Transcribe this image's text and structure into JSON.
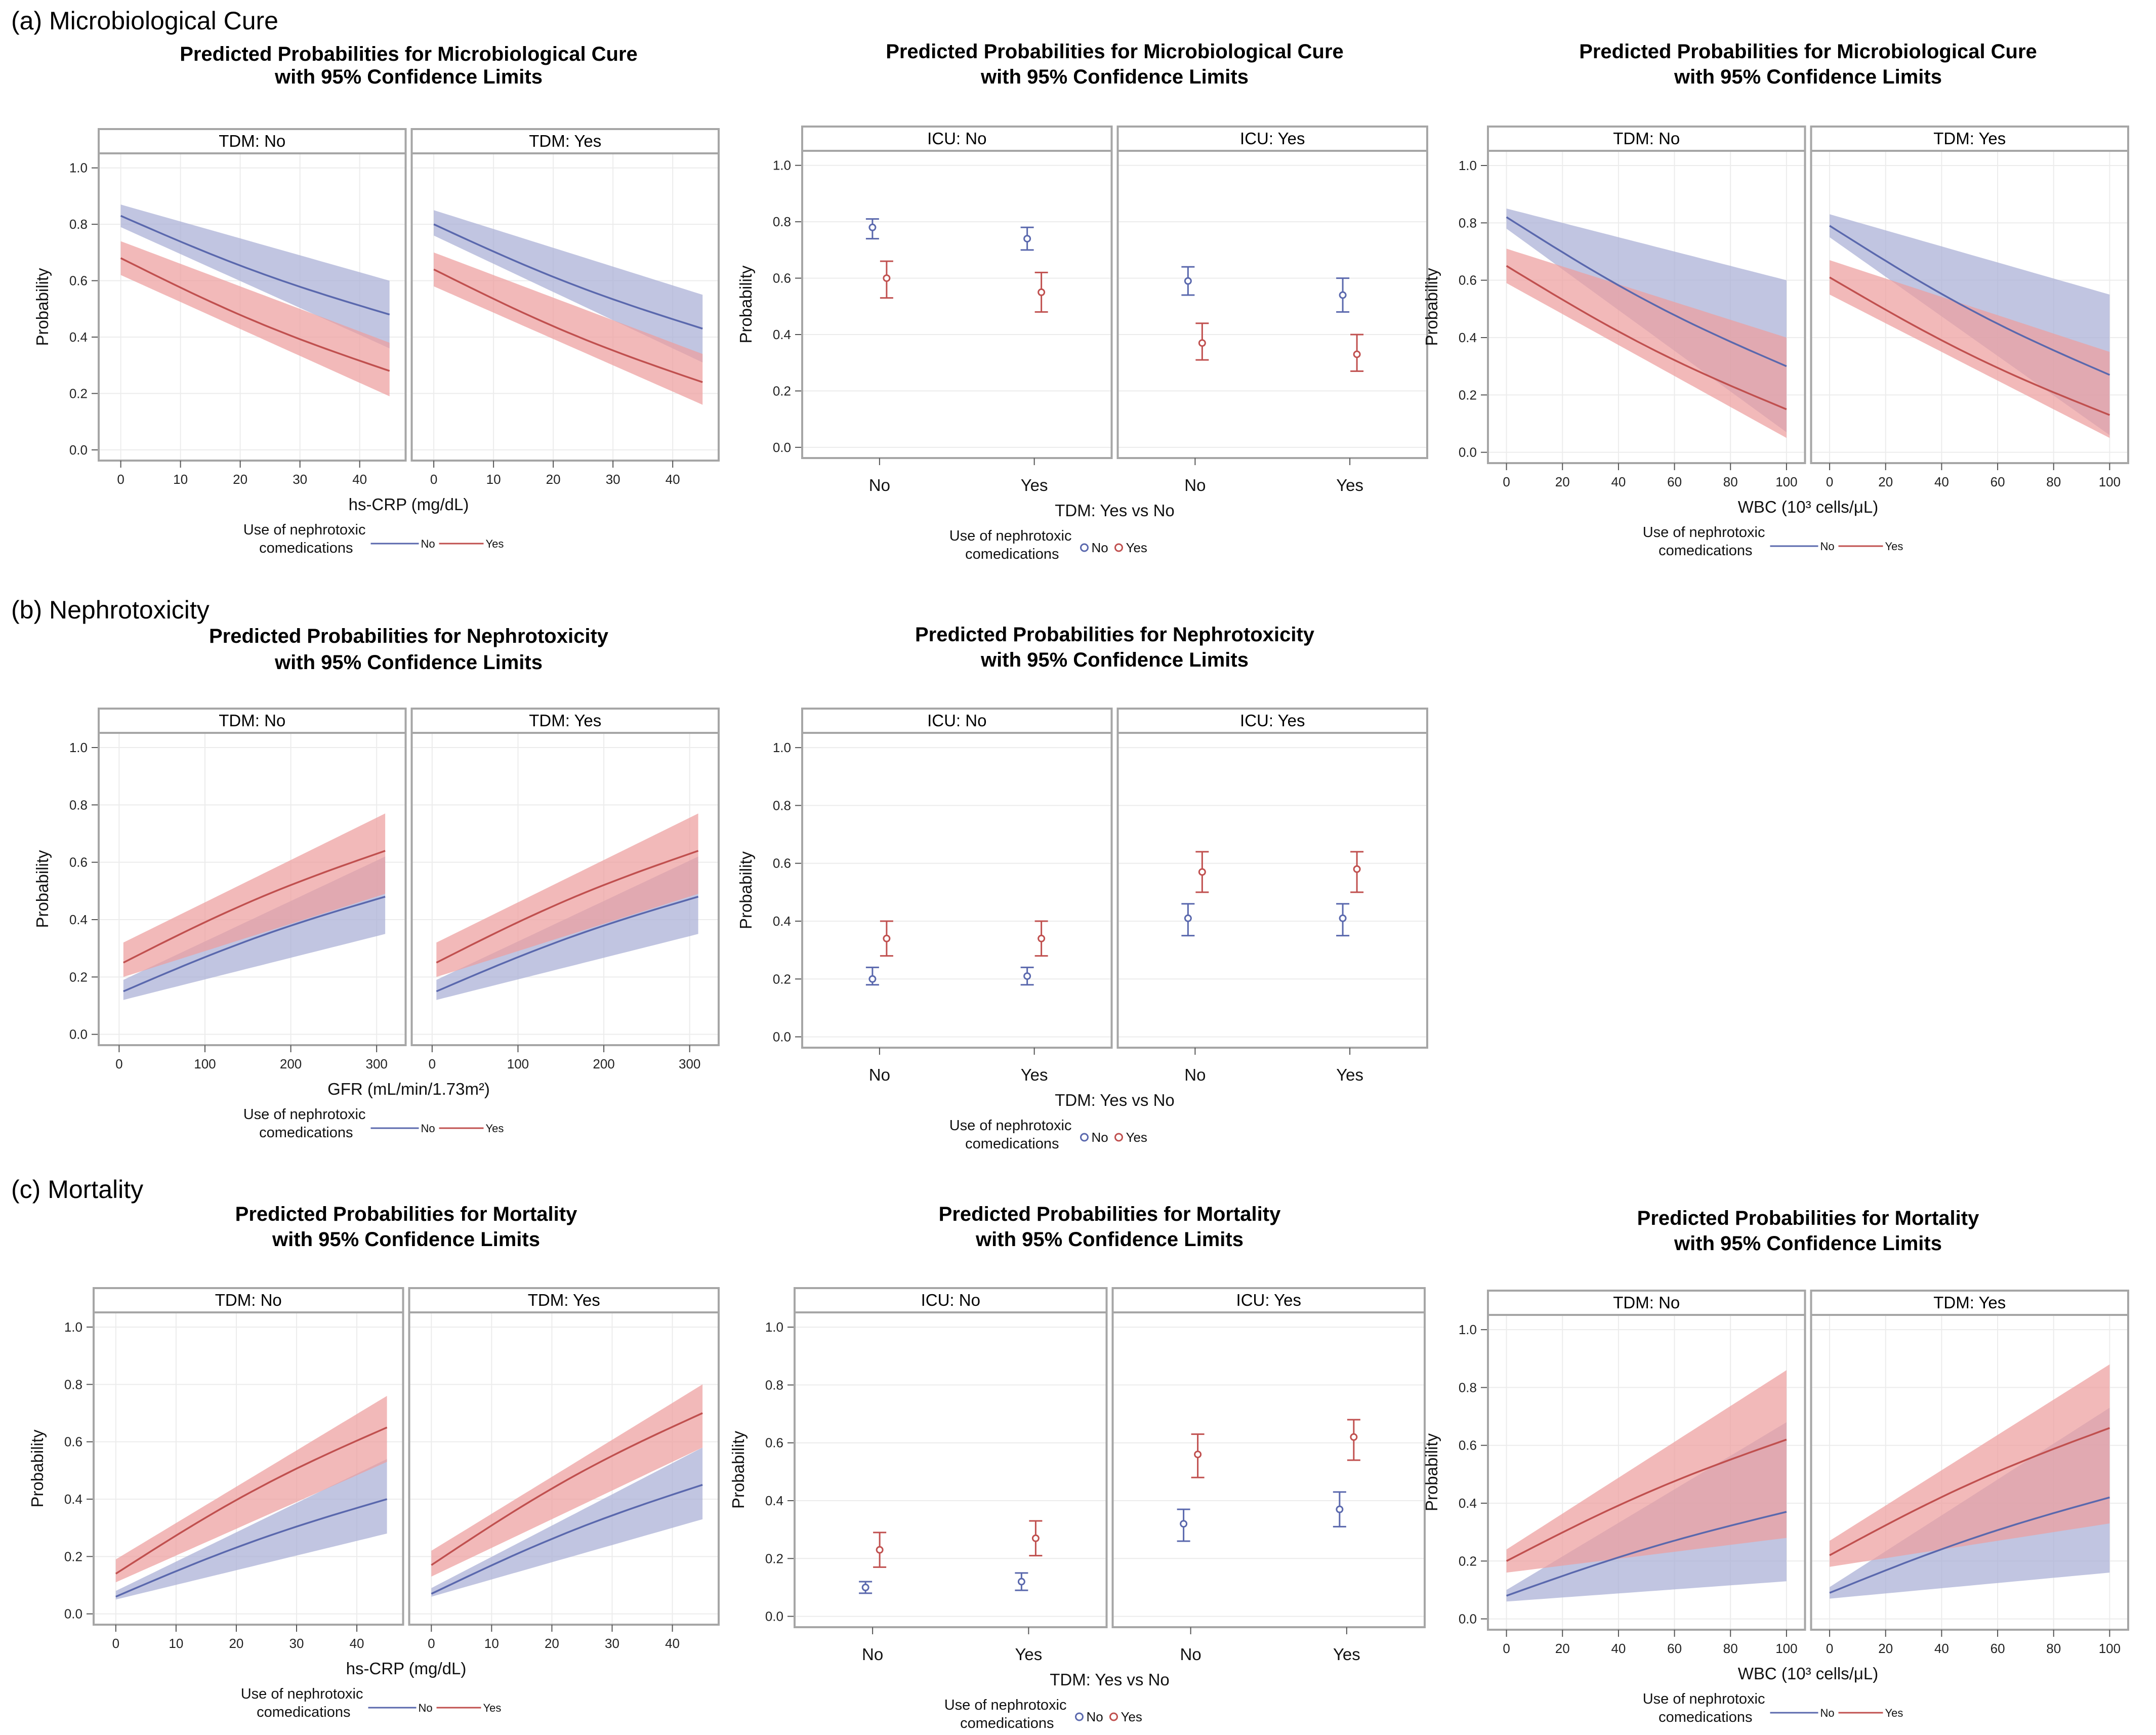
{
  "sections": [
    "(a) Microbiological Cure",
    "(b) Nephrotoxicity",
    "(c) Mortality"
  ],
  "legend": {
    "title_line1": "Use of nephrotoxic",
    "title_line2": "comedications",
    "items": [
      "No",
      "Yes"
    ]
  },
  "colors": {
    "no": "#5a68ad",
    "yes": "#c0504f",
    "no_fill": "#a9afd6",
    "yes_fill": "#ed9e9e",
    "frame": "#a6a6a6",
    "grid": "#ececec"
  },
  "chart_data": [
    {
      "id": "cure-crp",
      "section": 0,
      "type": "line",
      "title_line1": "Predicted Probabilities for Microbiological Cure",
      "title_line2": "with 95% Confidence Limits",
      "panels": [
        "TDM: No",
        "TDM: Yes"
      ],
      "xlabel": "hs-CRP (mg/dL)",
      "ylabel": "Probability",
      "xlim": [
        -2,
        46
      ],
      "ylim": [
        -0.02,
        1.03
      ],
      "xticks": [
        0,
        10,
        20,
        30,
        40
      ],
      "yticks": [
        0.0,
        0.2,
        0.4,
        0.6,
        0.8,
        1.0
      ],
      "series": [
        {
          "name": "No",
          "panels": [
            {
              "x": [
                0,
                45
              ],
              "mid": [
                0.83,
                0.48
              ],
              "lo": [
                0.79,
                0.36
              ],
              "hi": [
                0.87,
                0.6
              ]
            },
            {
              "x": [
                0,
                45
              ],
              "mid": [
                0.8,
                0.43
              ],
              "lo": [
                0.76,
                0.31
              ],
              "hi": [
                0.85,
                0.55
              ]
            }
          ]
        },
        {
          "name": "Yes",
          "panels": [
            {
              "x": [
                0,
                45
              ],
              "mid": [
                0.68,
                0.28
              ],
              "lo": [
                0.62,
                0.19
              ],
              "hi": [
                0.74,
                0.38
              ]
            },
            {
              "x": [
                0,
                45
              ],
              "mid": [
                0.64,
                0.24
              ],
              "lo": [
                0.58,
                0.16
              ],
              "hi": [
                0.7,
                0.34
              ]
            }
          ]
        }
      ]
    },
    {
      "id": "cure-icu",
      "section": 0,
      "type": "scatter",
      "title_line1": "Predicted Probabilities for Microbiological Cure",
      "title_line2": "with 95% Confidence Limits",
      "panels": [
        "ICU: No",
        "ICU: Yes"
      ],
      "categories": [
        "No",
        "Yes"
      ],
      "xlabel": "TDM: Yes vs No",
      "ylabel": "Probability",
      "ylim": [
        -0.02,
        1.03
      ],
      "yticks": [
        0.0,
        0.2,
        0.4,
        0.6,
        0.8,
        1.0
      ],
      "series": [
        {
          "name": "No",
          "panels": [
            {
              "est": [
                0.78,
                0.74
              ],
              "lo": [
                0.74,
                0.7
              ],
              "hi": [
                0.81,
                0.78
              ]
            },
            {
              "est": [
                0.59,
                0.54
              ],
              "lo": [
                0.54,
                0.48
              ],
              "hi": [
                0.64,
                0.6
              ]
            }
          ]
        },
        {
          "name": "Yes",
          "panels": [
            {
              "est": [
                0.6,
                0.55
              ],
              "lo": [
                0.53,
                0.48
              ],
              "hi": [
                0.66,
                0.62
              ]
            },
            {
              "est": [
                0.37,
                0.33
              ],
              "lo": [
                0.31,
                0.27
              ],
              "hi": [
                0.44,
                0.4
              ]
            }
          ]
        }
      ]
    },
    {
      "id": "cure-wbc",
      "section": 0,
      "type": "line",
      "title_line1": "Predicted Probabilities for Microbiological Cure",
      "title_line2": "with 95% Confidence Limits",
      "panels": [
        "TDM: No",
        "TDM: Yes"
      ],
      "xlabel": "WBC (10³ cells/μL)",
      "ylabel": "Probability",
      "xlim": [
        -3,
        103
      ],
      "ylim": [
        -0.02,
        1.03
      ],
      "xticks": [
        0,
        20,
        40,
        60,
        80,
        100
      ],
      "yticks": [
        0.0,
        0.2,
        0.4,
        0.6,
        0.8,
        1.0
      ],
      "series": [
        {
          "name": "No",
          "panels": [
            {
              "x": [
                0,
                100
              ],
              "mid": [
                0.82,
                0.3
              ],
              "lo": [
                0.78,
                0.07
              ],
              "hi": [
                0.85,
                0.6
              ]
            },
            {
              "x": [
                0,
                100
              ],
              "mid": [
                0.79,
                0.27
              ],
              "lo": [
                0.75,
                0.06
              ],
              "hi": [
                0.83,
                0.55
              ]
            }
          ]
        },
        {
          "name": "Yes",
          "panels": [
            {
              "x": [
                0,
                100
              ],
              "mid": [
                0.65,
                0.15
              ],
              "lo": [
                0.59,
                0.05
              ],
              "hi": [
                0.71,
                0.4
              ]
            },
            {
              "x": [
                0,
                100
              ],
              "mid": [
                0.61,
                0.13
              ],
              "lo": [
                0.55,
                0.05
              ],
              "hi": [
                0.67,
                0.35
              ]
            }
          ]
        }
      ]
    },
    {
      "id": "neph-gfr",
      "section": 1,
      "type": "line",
      "title_line1": "Predicted Probabilities for Nephrotoxicity",
      "title_line2": "with 95% Confidence Limits",
      "panels": [
        "TDM: No",
        "TDM: Yes"
      ],
      "xlabel": "GFR (mL/min/1.73m²)",
      "ylabel": "Probability",
      "xlim": [
        -12,
        322
      ],
      "ylim": [
        -0.02,
        1.03
      ],
      "xticks": [
        0,
        100,
        200,
        300
      ],
      "yticks": [
        0.0,
        0.2,
        0.4,
        0.6,
        0.8,
        1.0
      ],
      "series": [
        {
          "name": "No",
          "panels": [
            {
              "x": [
                5,
                310
              ],
              "mid": [
                0.15,
                0.48
              ],
              "lo": [
                0.12,
                0.35
              ],
              "hi": [
                0.19,
                0.62
              ]
            },
            {
              "x": [
                5,
                310
              ],
              "mid": [
                0.15,
                0.48
              ],
              "lo": [
                0.12,
                0.35
              ],
              "hi": [
                0.19,
                0.62
              ]
            }
          ]
        },
        {
          "name": "Yes",
          "panels": [
            {
              "x": [
                5,
                310
              ],
              "mid": [
                0.25,
                0.64
              ],
              "lo": [
                0.2,
                0.49
              ],
              "hi": [
                0.32,
                0.77
              ]
            },
            {
              "x": [
                5,
                310
              ],
              "mid": [
                0.25,
                0.64
              ],
              "lo": [
                0.2,
                0.49
              ],
              "hi": [
                0.32,
                0.77
              ]
            }
          ]
        }
      ]
    },
    {
      "id": "neph-icu",
      "section": 1,
      "type": "scatter",
      "title_line1": "Predicted Probabilities for Nephrotoxicity",
      "title_line2": "with 95% Confidence Limits",
      "panels": [
        "ICU: No",
        "ICU: Yes"
      ],
      "categories": [
        "No",
        "Yes"
      ],
      "xlabel": "TDM: Yes vs No",
      "ylabel": "Probability",
      "ylim": [
        -0.02,
        1.03
      ],
      "yticks": [
        0.0,
        0.2,
        0.4,
        0.6,
        0.8,
        1.0
      ],
      "series": [
        {
          "name": "No",
          "panels": [
            {
              "est": [
                0.2,
                0.21
              ],
              "lo": [
                0.18,
                0.18
              ],
              "hi": [
                0.24,
                0.24
              ]
            },
            {
              "est": [
                0.41,
                0.41
              ],
              "lo": [
                0.35,
                0.35
              ],
              "hi": [
                0.46,
                0.46
              ]
            }
          ]
        },
        {
          "name": "Yes",
          "panels": [
            {
              "est": [
                0.34,
                0.34
              ],
              "lo": [
                0.28,
                0.28
              ],
              "hi": [
                0.4,
                0.4
              ]
            },
            {
              "est": [
                0.57,
                0.58
              ],
              "lo": [
                0.5,
                0.5
              ],
              "hi": [
                0.64,
                0.64
              ]
            }
          ]
        }
      ]
    },
    {
      "id": "mort-crp",
      "section": 2,
      "type": "line",
      "title_line1": "Predicted Probabilities for Mortality",
      "title_line2": "with 95% Confidence Limits",
      "panels": [
        "TDM: No",
        "TDM: Yes"
      ],
      "xlabel": "hs-CRP (mg/dL)",
      "ylabel": "Probability",
      "xlim": [
        -2,
        46
      ],
      "ylim": [
        -0.02,
        1.03
      ],
      "xticks": [
        0,
        10,
        20,
        30,
        40
      ],
      "yticks": [
        0.0,
        0.2,
        0.4,
        0.6,
        0.8,
        1.0
      ],
      "series": [
        {
          "name": "No",
          "panels": [
            {
              "x": [
                0,
                45
              ],
              "mid": [
                0.06,
                0.4
              ],
              "lo": [
                0.05,
                0.28
              ],
              "hi": [
                0.08,
                0.54
              ]
            },
            {
              "x": [
                0,
                45
              ],
              "mid": [
                0.07,
                0.45
              ],
              "lo": [
                0.06,
                0.33
              ],
              "hi": [
                0.09,
                0.58
              ]
            }
          ]
        },
        {
          "name": "Yes",
          "panels": [
            {
              "x": [
                0,
                45
              ],
              "mid": [
                0.14,
                0.65
              ],
              "lo": [
                0.11,
                0.53
              ],
              "hi": [
                0.19,
                0.76
              ]
            },
            {
              "x": [
                0,
                45
              ],
              "mid": [
                0.17,
                0.7
              ],
              "lo": [
                0.13,
                0.58
              ],
              "hi": [
                0.22,
                0.8
              ]
            }
          ]
        }
      ]
    },
    {
      "id": "mort-icu",
      "section": 2,
      "type": "scatter",
      "title_line1": "Predicted Probabilities for Mortality",
      "title_line2": "with 95% Confidence Limits",
      "panels": [
        "ICU: No",
        "ICU: Yes"
      ],
      "categories": [
        "No",
        "Yes"
      ],
      "xlabel": "TDM: Yes vs No",
      "ylabel": "Probability",
      "ylim": [
        -0.02,
        1.03
      ],
      "yticks": [
        0.0,
        0.2,
        0.4,
        0.6,
        0.8,
        1.0
      ],
      "series": [
        {
          "name": "No",
          "panels": [
            {
              "est": [
                0.1,
                0.12
              ],
              "lo": [
                0.08,
                0.09
              ],
              "hi": [
                0.12,
                0.15
              ]
            },
            {
              "est": [
                0.32,
                0.37
              ],
              "lo": [
                0.26,
                0.31
              ],
              "hi": [
                0.37,
                0.43
              ]
            }
          ]
        },
        {
          "name": "Yes",
          "panels": [
            {
              "est": [
                0.23,
                0.27
              ],
              "lo": [
                0.17,
                0.21
              ],
              "hi": [
                0.29,
                0.33
              ]
            },
            {
              "est": [
                0.56,
                0.62
              ],
              "lo": [
                0.48,
                0.54
              ],
              "hi": [
                0.63,
                0.68
              ]
            }
          ]
        }
      ]
    },
    {
      "id": "mort-wbc",
      "section": 2,
      "type": "line",
      "title_line1": "Predicted Probabilities for Mortality",
      "title_line2": "with 95% Confidence Limits",
      "panels": [
        "TDM: No",
        "TDM: Yes"
      ],
      "xlabel": "WBC (10³ cells/μL)",
      "ylabel": "Probability",
      "xlim": [
        -3,
        103
      ],
      "ylim": [
        -0.02,
        1.03
      ],
      "xticks": [
        0,
        20,
        40,
        60,
        80,
        100
      ],
      "yticks": [
        0.0,
        0.2,
        0.4,
        0.6,
        0.8,
        1.0
      ],
      "series": [
        {
          "name": "No",
          "panels": [
            {
              "x": [
                0,
                100
              ],
              "mid": [
                0.08,
                0.37
              ],
              "lo": [
                0.06,
                0.13
              ],
              "hi": [
                0.1,
                0.68
              ]
            },
            {
              "x": [
                0,
                100
              ],
              "mid": [
                0.09,
                0.42
              ],
              "lo": [
                0.07,
                0.16
              ],
              "hi": [
                0.11,
                0.73
              ]
            }
          ]
        },
        {
          "name": "Yes",
          "panels": [
            {
              "x": [
                0,
                100
              ],
              "mid": [
                0.2,
                0.62
              ],
              "lo": [
                0.16,
                0.28
              ],
              "hi": [
                0.24,
                0.86
              ]
            },
            {
              "x": [
                0,
                100
              ],
              "mid": [
                0.22,
                0.66
              ],
              "lo": [
                0.18,
                0.33
              ],
              "hi": [
                0.27,
                0.88
              ]
            }
          ]
        }
      ]
    }
  ]
}
